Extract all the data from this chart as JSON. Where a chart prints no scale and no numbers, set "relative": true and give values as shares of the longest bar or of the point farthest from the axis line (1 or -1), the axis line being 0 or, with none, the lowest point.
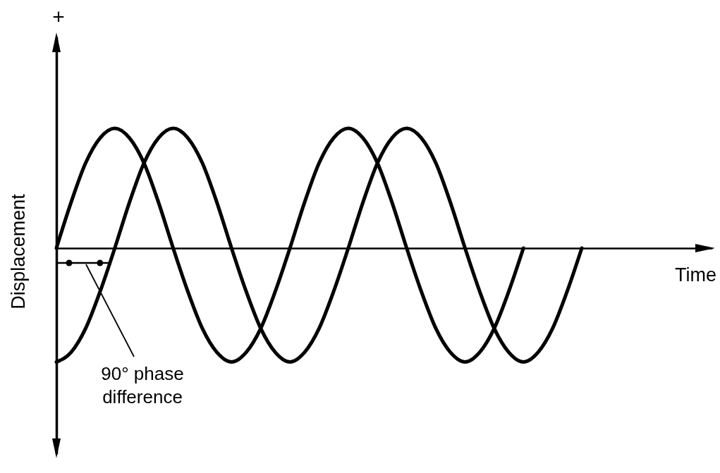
{
  "chart_data": {
    "type": "line",
    "relative": true,
    "xlabel": "Time",
    "ylabel": "Displacement",
    "annotations": [
      "+",
      "90° phase difference"
    ],
    "categories": [
      null,
      null,
      null,
      null,
      null,
      null,
      null,
      null,
      null,
      null,
      null,
      null,
      null,
      null,
      null,
      null,
      null,
      null,
      null,
      null,
      null,
      null,
      null,
      null,
      null,
      null,
      null,
      null,
      null,
      null,
      null,
      null,
      null,
      null,
      null,
      null,
      null
    ],
    "series": [
      {
        "color": "#000000",
        "values": [
          0,
          0.38,
          0.71,
          0.92,
          1,
          0.92,
          0.71,
          0.38,
          0,
          -0.36,
          -0.67,
          -0.87,
          -0.95,
          -0.87,
          -0.67,
          -0.36,
          0,
          0.38,
          0.71,
          0.92,
          1,
          0.92,
          0.71,
          0.38,
          0,
          -0.36,
          -0.67,
          -0.87,
          -0.95,
          -0.87,
          -0.67,
          -0.36,
          0,
          null,
          null,
          null,
          null
        ]
      },
      {
        "color": "#000000",
        "values": [
          -0.95,
          -0.87,
          -0.67,
          -0.36,
          0,
          0.38,
          0.71,
          0.92,
          1,
          0.92,
          0.71,
          0.38,
          0,
          -0.36,
          -0.67,
          -0.87,
          -0.95,
          -0.87,
          -0.67,
          -0.36,
          0,
          0.38,
          0.71,
          0.92,
          1,
          0.92,
          0.71,
          0.38,
          0,
          -0.36,
          -0.67,
          -0.87,
          -0.95,
          -0.87,
          -0.67,
          -0.36,
          0
        ]
      }
    ]
  }
}
